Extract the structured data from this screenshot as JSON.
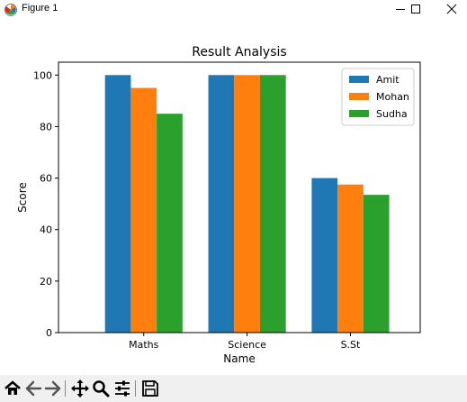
{
  "window": {
    "title": "Figure 1"
  },
  "titlebar_buttons": [
    {
      "name": "minimize-button",
      "icon": "minimize-icon"
    },
    {
      "name": "maximize-button",
      "icon": "maximize-icon"
    },
    {
      "name": "close-button",
      "icon": "close-icon"
    }
  ],
  "toolbar": {
    "buttons": [
      "home-icon",
      "back-arrow-icon",
      "forward-arrow-icon",
      "pan-icon",
      "zoom-icon",
      "configure-subplots-icon",
      "save-icon"
    ]
  },
  "chart_data": {
    "type": "bar",
    "title": "Result Analysis",
    "xlabel": "Name",
    "ylabel": "Score",
    "categories": [
      "Maths",
      "Science",
      "S.St"
    ],
    "series": [
      {
        "name": "Amit",
        "color": "#1f77b4",
        "values": [
          100,
          100,
          60
        ]
      },
      {
        "name": "Mohan",
        "color": "#ff7f0e",
        "values": [
          95,
          100,
          57.5
        ]
      },
      {
        "name": "Sudha",
        "color": "#2ca02c",
        "values": [
          85,
          100,
          53.5
        ]
      }
    ],
    "ylim": [
      0,
      105
    ],
    "yticks": [
      0,
      20,
      40,
      60,
      80,
      100
    ],
    "grid": false,
    "legend_position": "top-right"
  }
}
